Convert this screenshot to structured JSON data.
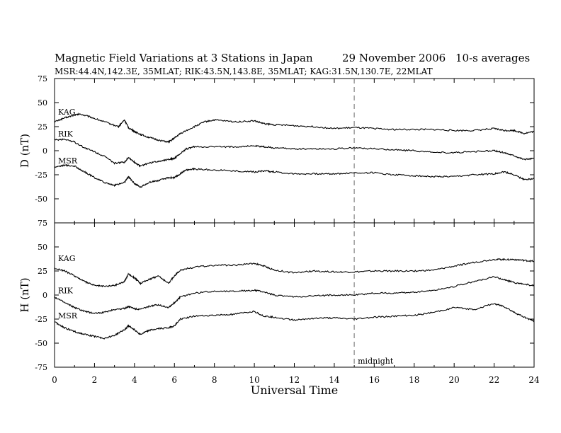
{
  "header": {
    "title": "Magnetic Field Variations at 3 Stations in Japan",
    "date": "29 November 2006",
    "averaging": "10-s averages",
    "stations": "MSR:44.4N,142.3E, 35MLAT;   RIK:43.5N,143.8E, 35MLAT;   KAG:31.5N,130.7E, 22MLAT"
  },
  "chart_data": [
    {
      "type": "line",
      "panel": "top",
      "ylabel": "D (nT)",
      "xlabel": "",
      "xlim": [
        0,
        24
      ],
      "ylim": [
        -75,
        75
      ],
      "yticks": [
        -75,
        -50,
        -25,
        0,
        25,
        50,
        75
      ],
      "grid": false,
      "series": [
        {
          "name": "KAG",
          "x": [
            0,
            0.5,
            1,
            1.3,
            1.8,
            2.5,
            3.2,
            3.5,
            3.7,
            4.0,
            4.3,
            4.7,
            5.2,
            5.7,
            6.0,
            6.3,
            7.0,
            7.5,
            8.0,
            9.0,
            10.0,
            10.5,
            11.0,
            12.0,
            13.0,
            14.0,
            15.0,
            16.0,
            17.0,
            18.0,
            19.0,
            20.0,
            21.0,
            22.0,
            22.5,
            23.0,
            23.5,
            24.0
          ],
          "y": [
            30,
            34,
            37,
            38,
            35,
            30,
            25,
            32,
            24,
            20,
            17,
            14,
            11,
            9,
            13,
            18,
            25,
            30,
            32,
            30,
            31,
            28,
            27,
            26,
            25,
            23,
            24,
            23,
            22,
            22,
            22,
            21,
            21,
            23,
            21,
            21,
            18,
            20
          ]
        },
        {
          "name": "RIK",
          "x": [
            0,
            0.5,
            1,
            1.5,
            2,
            2.5,
            3.0,
            3.5,
            3.7,
            4.0,
            4.3,
            4.7,
            5.2,
            5.7,
            6.0,
            6.3,
            6.6,
            7.0,
            8.0,
            9.0,
            10.0,
            10.5,
            11.0,
            12.0,
            13.0,
            14.0,
            15.0,
            16.0,
            17.0,
            18.0,
            19.0,
            20.0,
            21.0,
            22.0,
            22.5,
            23.0,
            23.5,
            24.0
          ],
          "y": [
            11,
            12,
            9,
            3,
            -1,
            -6,
            -13,
            -12,
            -7,
            -12,
            -16,
            -13,
            -11,
            -9,
            -8,
            -3,
            2,
            4,
            4,
            4,
            5,
            4,
            3,
            2,
            2,
            2,
            3,
            2,
            1,
            0,
            -2,
            -2,
            -1,
            0,
            -2,
            -5,
            -9,
            -8
          ]
        },
        {
          "name": "MSR",
          "x": [
            0,
            0.5,
            1,
            1.5,
            2,
            2.5,
            3.0,
            3.5,
            3.7,
            4.0,
            4.3,
            4.7,
            5.2,
            5.7,
            6.0,
            6.3,
            6.6,
            7.0,
            8.0,
            9.0,
            10.0,
            10.5,
            11.0,
            12.0,
            13.0,
            14.0,
            15.0,
            16.0,
            17.0,
            18.0,
            19.0,
            20.0,
            21.0,
            22.0,
            22.5,
            23.0,
            23.5,
            24.0
          ],
          "y": [
            -17,
            -15,
            -16,
            -22,
            -28,
            -33,
            -36,
            -33,
            -27,
            -34,
            -38,
            -33,
            -31,
            -28,
            -28,
            -24,
            -20,
            -19,
            -20,
            -21,
            -22,
            -21,
            -22,
            -24,
            -24,
            -24,
            -23,
            -23,
            -25,
            -26,
            -27,
            -27,
            -25,
            -24,
            -22,
            -25,
            -30,
            -29
          ]
        }
      ]
    },
    {
      "type": "line",
      "panel": "bottom",
      "ylabel": "H (nT)",
      "xlabel": "Universal Time",
      "xlim": [
        0,
        24
      ],
      "ylim": [
        -75,
        75
      ],
      "yticks": [
        -75,
        -50,
        -25,
        0,
        25,
        50,
        75
      ],
      "xticks": [
        0,
        2,
        4,
        6,
        8,
        10,
        12,
        14,
        16,
        18,
        20,
        22,
        24
      ],
      "grid": false,
      "annotation": {
        "text": "midnight",
        "x": 15
      },
      "series": [
        {
          "name": "KAG",
          "x": [
            0,
            0.5,
            1,
            1.5,
            2,
            2.5,
            3.0,
            3.5,
            3.7,
            4.0,
            4.3,
            4.7,
            5.2,
            5.7,
            6.0,
            6.3,
            7.0,
            8.0,
            9.0,
            10.0,
            10.5,
            11.0,
            12.0,
            13.0,
            14.0,
            15.0,
            16.0,
            17.0,
            18.0,
            19.0,
            20.0,
            21.0,
            22.0,
            22.5,
            23.0,
            23.5,
            24.0
          ],
          "y": [
            28,
            25,
            20,
            14,
            10,
            9,
            10,
            14,
            22,
            18,
            12,
            16,
            20,
            12,
            20,
            26,
            29,
            31,
            31,
            33,
            30,
            26,
            23,
            25,
            24,
            24,
            25,
            25,
            25,
            26,
            30,
            34,
            37,
            37,
            37,
            36,
            35
          ]
        },
        {
          "name": "RIK",
          "x": [
            0,
            0.5,
            1,
            1.5,
            2,
            2.5,
            3.0,
            3.5,
            3.7,
            4.0,
            4.3,
            4.7,
            5.2,
            5.7,
            6.0,
            6.3,
            7.0,
            8.0,
            9.0,
            10.0,
            10.5,
            11.0,
            12.0,
            13.0,
            14.0,
            15.0,
            16.0,
            17.0,
            18.0,
            19.0,
            20.0,
            21.0,
            22.0,
            22.5,
            23.0,
            23.5,
            24.0
          ],
          "y": [
            -2,
            -8,
            -13,
            -17,
            -19,
            -18,
            -15,
            -14,
            -12,
            -14,
            -15,
            -12,
            -10,
            -13,
            -8,
            -2,
            2,
            4,
            4,
            5,
            3,
            0,
            -2,
            -1,
            0,
            0,
            2,
            2,
            3,
            5,
            9,
            14,
            19,
            16,
            13,
            11,
            10
          ]
        },
        {
          "name": "MSR",
          "x": [
            0,
            0.5,
            1,
            1.5,
            2,
            2.5,
            3.0,
            3.5,
            3.7,
            4.0,
            4.3,
            4.7,
            5.2,
            5.7,
            6.0,
            6.3,
            7.0,
            8.0,
            9.0,
            10.0,
            10.5,
            11.0,
            12.0,
            13.0,
            14.0,
            15.0,
            16.0,
            17.0,
            18.0,
            19.0,
            20.0,
            21.0,
            22.0,
            22.5,
            23.0,
            23.5,
            24.0
          ],
          "y": [
            -28,
            -34,
            -38,
            -41,
            -43,
            -45,
            -42,
            -36,
            -32,
            -36,
            -41,
            -37,
            -35,
            -34,
            -32,
            -25,
            -22,
            -21,
            -20,
            -17,
            -22,
            -23,
            -26,
            -24,
            -24,
            -25,
            -23,
            -22,
            -21,
            -18,
            -13,
            -15,
            -9,
            -12,
            -18,
            -23,
            -27
          ]
        }
      ]
    }
  ]
}
